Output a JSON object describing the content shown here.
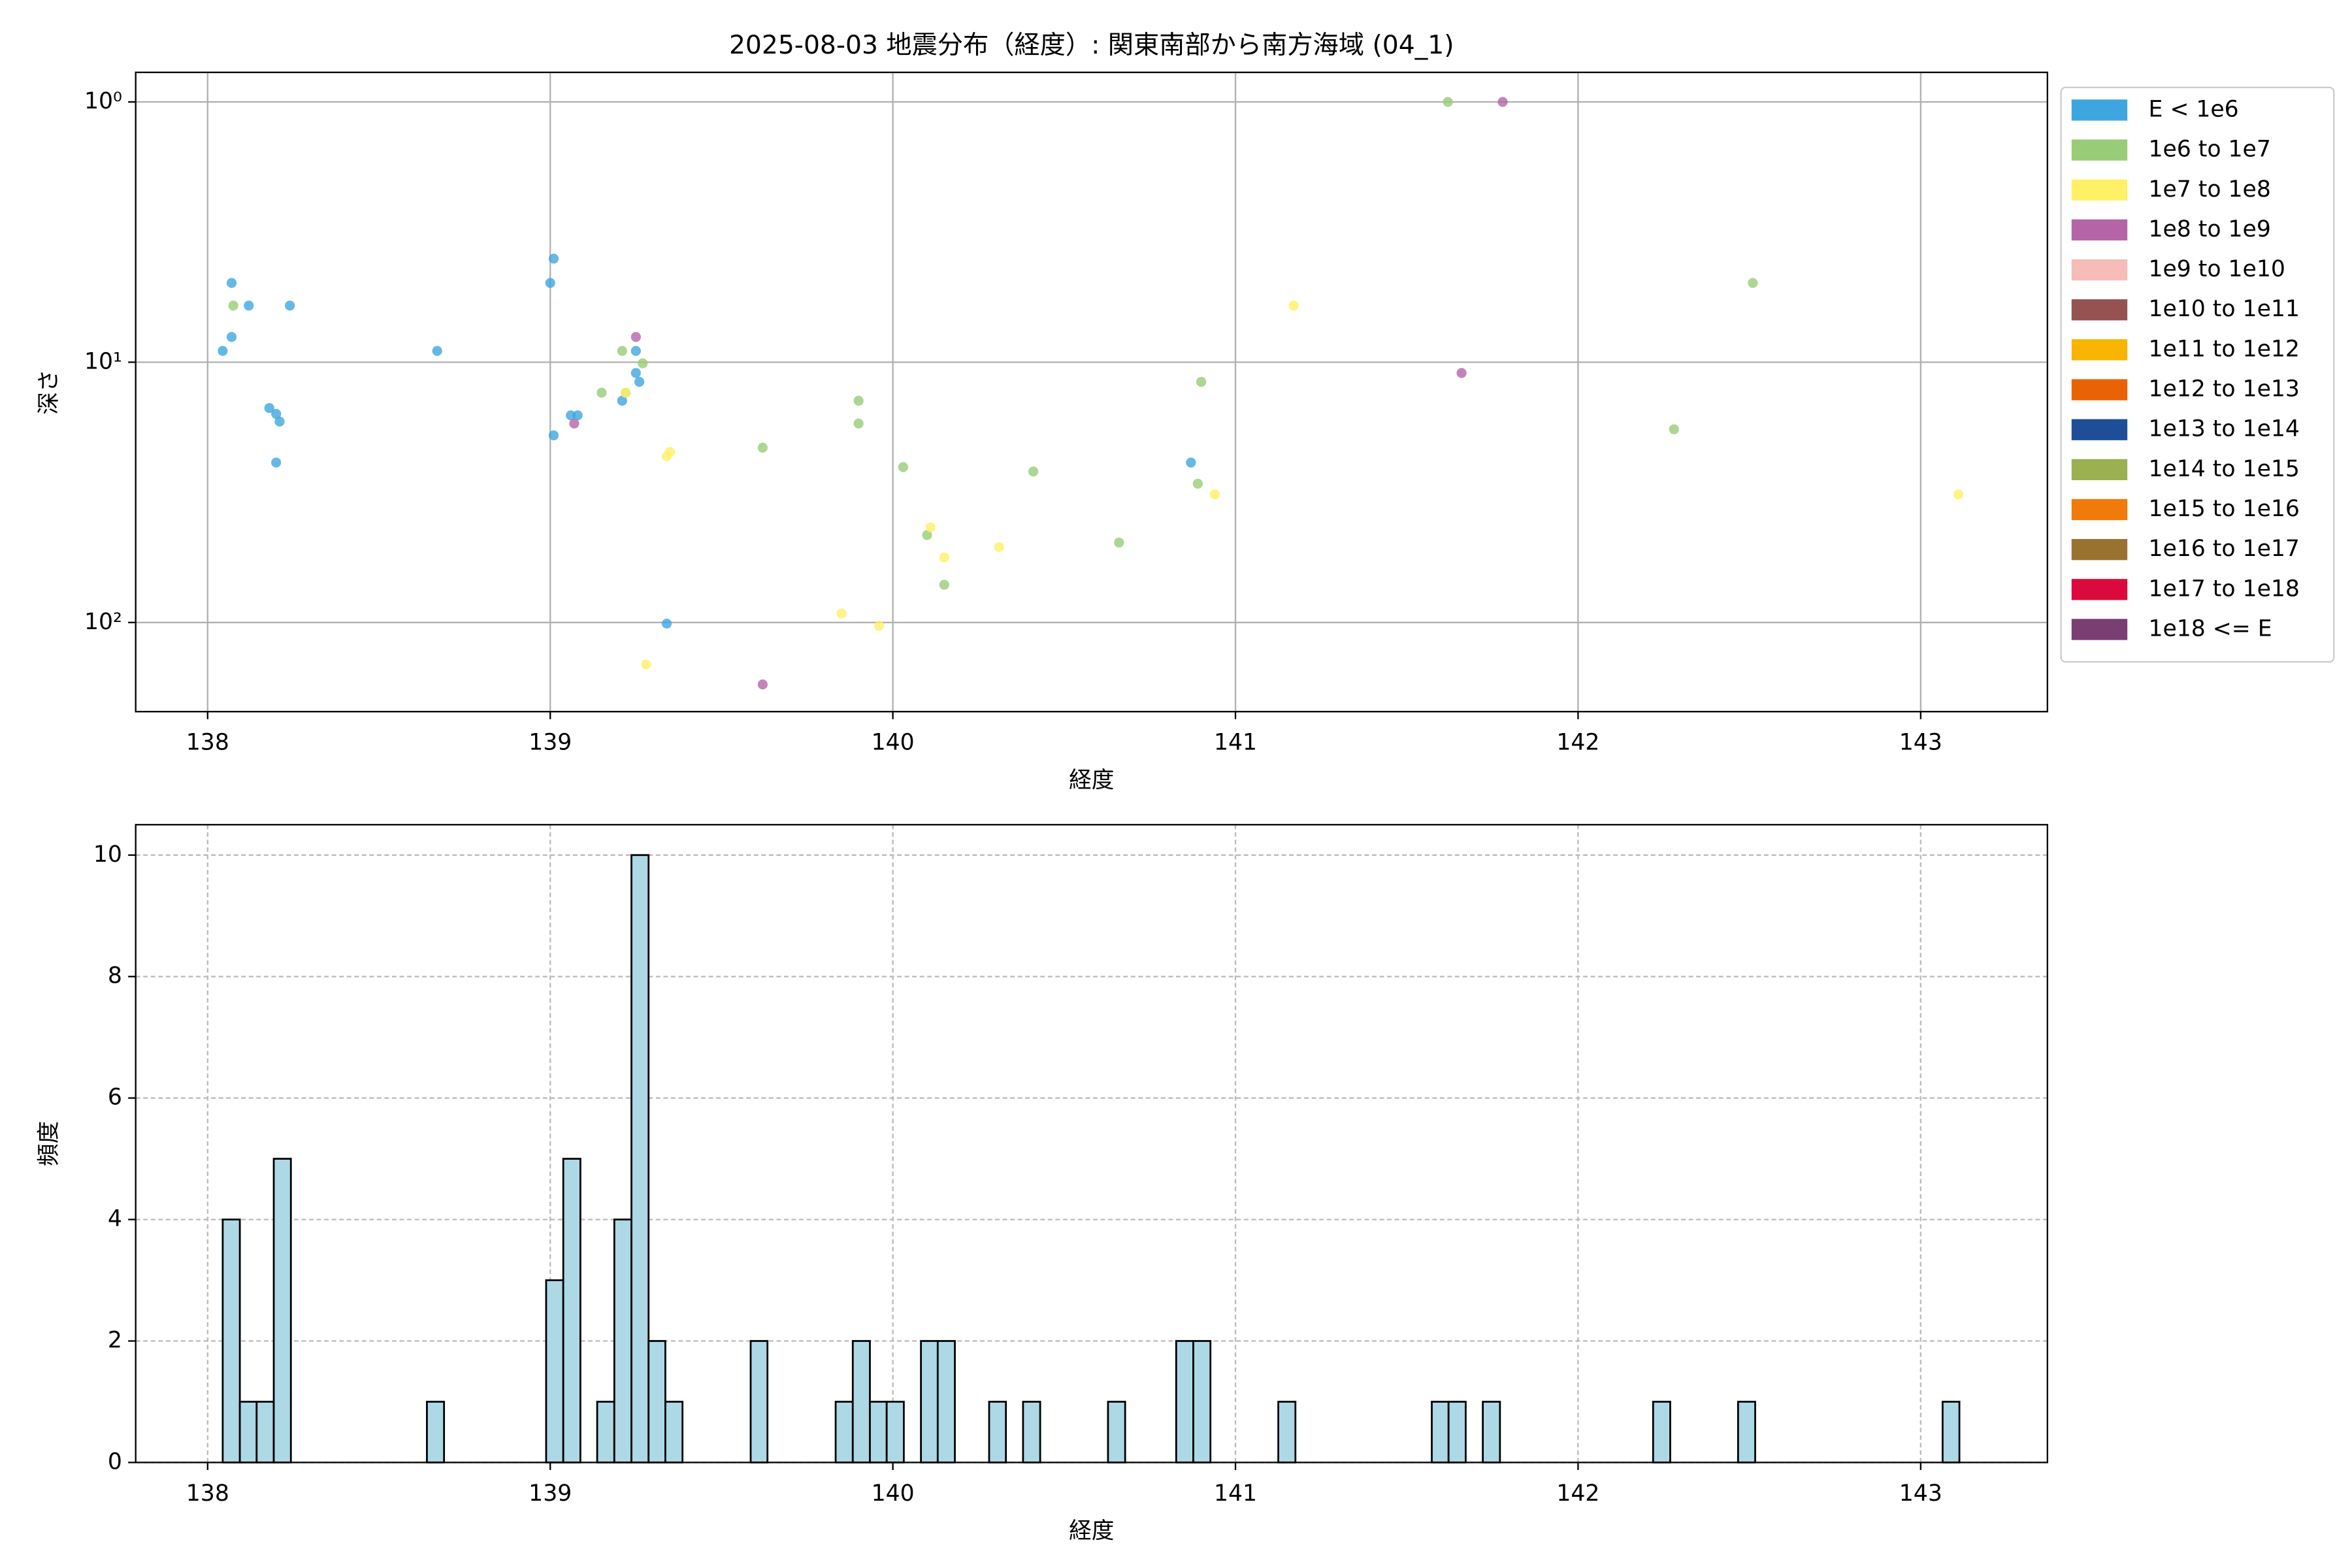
{
  "chart_data": [
    {
      "type": "scatter",
      "title": "2025-08-03 地震分布（経度）: 関東南部から南方海域 (04_1)",
      "xlabel": "経度",
      "ylabel": "深さ",
      "xlim": [
        137.79,
        143.37
      ],
      "xticks": [
        138,
        139,
        140,
        141,
        142,
        143
      ],
      "ylim": [
        0.77,
        220
      ],
      "yscale": "log",
      "y_inverted": true,
      "yticks": [
        {
          "value": 1,
          "label": "10⁰"
        },
        {
          "value": 10,
          "label": "10¹"
        },
        {
          "value": 100,
          "label": "10²"
        }
      ],
      "grid": true,
      "grid_style": "solid",
      "legend": "outside-upper-right",
      "series": [
        {
          "name": "E < 1e6",
          "color": "#3ea6de",
          "x": [
            138.044,
            138.07,
            138.07,
            138.12,
            138.24,
            138.18,
            138.2,
            138.21,
            138.2,
            138.67,
            139.01,
            139.0,
            139.01,
            139.06,
            139.08,
            139.21,
            139.25,
            139.25,
            139.26,
            139.34,
            140.87
          ],
          "values": [
            9.05,
            4.96,
            8.0,
            6.06,
            6.06,
            15.0,
            15.8,
            16.9,
            24.3,
            9.05,
            4.0,
            4.96,
            19.1,
            16.0,
            16.0,
            14.06,
            9.05,
            11.0,
            11.9,
            101,
            24.3
          ]
        },
        {
          "name": "1e6 to 1e7",
          "color": "#99cc77",
          "x": [
            138.075,
            139.21,
            139.15,
            139.22,
            139.27,
            139.62,
            139.9,
            139.9,
            140.03,
            140.1,
            140.15,
            140.41,
            140.66,
            140.9,
            140.89,
            141.62,
            142.28,
            142.51
          ],
          "values": [
            6.06,
            9.05,
            13.1,
            13.1,
            10.1,
            21.3,
            14.06,
            17.2,
            25.3,
            46.1,
            71.6,
            26.3,
            49.3,
            11.9,
            29.3,
            1.0,
            18.1,
            4.96
          ]
        },
        {
          "name": "1e7 to 1e8",
          "color": "#fff066",
          "x": [
            139.22,
            139.34,
            139.35,
            139.28,
            139.85,
            139.96,
            140.11,
            140.15,
            140.31,
            140.94,
            141.17,
            143.11
          ],
          "values": [
            13.1,
            23.0,
            22.1,
            145,
            92.3,
            103,
            43.1,
            56.3,
            51.3,
            32.2,
            6.06,
            32.2
          ]
        },
        {
          "name": "1e8 to 1e9",
          "color": "#b565a7",
          "x": [
            139.25,
            139.07,
            139.62,
            141.66,
            141.78
          ],
          "values": [
            8.0,
            17.2,
            173,
            11.0,
            1.0
          ]
        },
        {
          "name": "1e9 to 1e10",
          "color": "#f6bcb8",
          "x": [],
          "values": []
        },
        {
          "name": "1e10 to 1e11",
          "color": "#955251",
          "x": [],
          "values": []
        },
        {
          "name": "1e11 to 1e12",
          "color": "#f7b500",
          "x": [],
          "values": []
        },
        {
          "name": "1e12 to 1e13",
          "color": "#ea6206",
          "x": [],
          "values": []
        },
        {
          "name": "1e13 to 1e14",
          "color": "#1f4e99",
          "x": [],
          "values": []
        },
        {
          "name": "1e14 to 1e15",
          "color": "#9bb050",
          "x": [],
          "values": []
        },
        {
          "name": "1e15 to 1e16",
          "color": "#f07a0a",
          "x": [],
          "values": []
        },
        {
          "name": "1e16 to 1e17",
          "color": "#9a7230",
          "x": [],
          "values": []
        },
        {
          "name": "1e17 to 1e18",
          "color": "#dc0a3c",
          "x": [],
          "values": []
        },
        {
          "name": "1e18 <= E",
          "color": "#7a3e72",
          "x": [],
          "values": []
        }
      ]
    },
    {
      "type": "histogram",
      "xlabel": "経度",
      "ylabel": "頻度",
      "xlim": [
        137.79,
        143.37
      ],
      "xticks": [
        138,
        139,
        140,
        141,
        142,
        143
      ],
      "ylim": [
        0,
        10.5
      ],
      "yticks": [
        0,
        2,
        4,
        6,
        8,
        10
      ],
      "grid": true,
      "grid_style": "dashed",
      "color": "#add8e6",
      "edgecolor": "#000000",
      "bins": [
        138.044,
        138.094,
        138.143,
        138.193,
        138.243,
        138.293,
        138.342,
        138.392,
        138.442,
        138.491,
        138.541,
        138.591,
        138.64,
        138.69,
        138.74,
        138.79,
        138.839,
        138.889,
        138.939,
        138.988,
        139.038,
        139.088,
        139.137,
        139.187,
        139.237,
        139.287,
        139.336,
        139.386,
        139.436,
        139.485,
        139.535,
        139.585,
        139.634,
        139.684,
        139.734,
        139.784,
        139.833,
        139.883,
        139.933,
        139.982,
        140.032,
        140.082,
        140.131,
        140.181,
        140.231,
        140.281,
        140.33,
        140.38,
        140.43,
        140.479,
        140.529,
        140.579,
        140.628,
        140.678,
        140.728,
        140.778,
        140.827,
        140.877,
        140.927,
        140.976,
        141.026,
        141.076,
        141.125,
        141.175,
        141.225,
        141.275,
        141.324,
        141.374,
        141.424,
        141.473,
        141.523,
        141.573,
        141.622,
        141.672,
        141.722,
        141.772,
        141.821,
        141.871,
        141.921,
        141.97,
        142.02,
        142.07,
        142.119,
        142.169,
        142.219,
        142.269,
        142.318,
        142.368,
        142.418,
        142.467,
        142.517,
        142.567,
        142.616,
        142.666,
        142.716,
        142.766,
        142.815,
        142.865,
        142.915,
        142.964,
        143.014,
        143.064,
        143.113
      ],
      "values": [
        4,
        1,
        1,
        5,
        0,
        0,
        0,
        0,
        0,
        0,
        0,
        0,
        1,
        0,
        0,
        0,
        0,
        0,
        0,
        3,
        5,
        0,
        1,
        4,
        10,
        2,
        1,
        0,
        0,
        0,
        0,
        2,
        0,
        0,
        0,
        0,
        1,
        2,
        1,
        1,
        0,
        2,
        2,
        0,
        0,
        1,
        0,
        1,
        0,
        0,
        0,
        0,
        1,
        0,
        0,
        0,
        2,
        2,
        0,
        0,
        0,
        0,
        1,
        0,
        0,
        0,
        0,
        0,
        0,
        0,
        0,
        1,
        1,
        0,
        1,
        0,
        0,
        0,
        0,
        0,
        0,
        0,
        0,
        0,
        1,
        0,
        0,
        0,
        0,
        1,
        0,
        0,
        0,
        0,
        0,
        0,
        0,
        0,
        0,
        0,
        0,
        1
      ]
    }
  ]
}
